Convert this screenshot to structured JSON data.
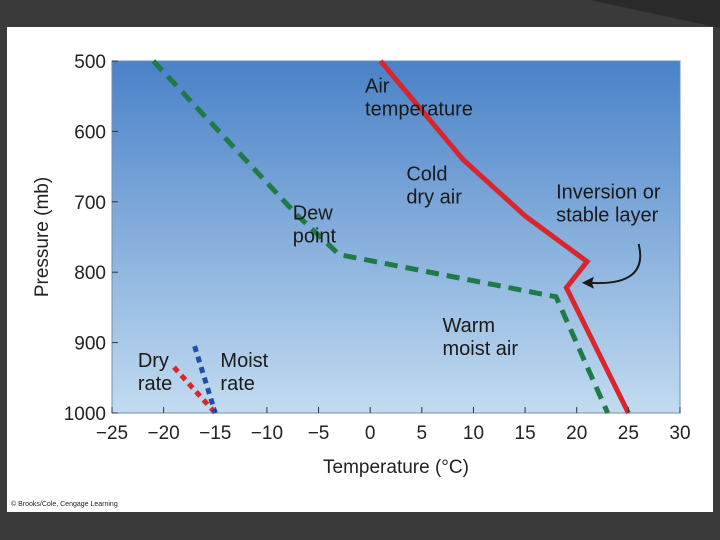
{
  "chart_data": {
    "type": "line",
    "xlabel": "Temperature (°C)",
    "ylabel": "Pressure (mb)",
    "xlim": [
      -25,
      30
    ],
    "ylim": [
      1000,
      500
    ],
    "x_ticks": [
      "−25",
      "−20",
      "−15",
      "−10",
      "−5",
      "0",
      "5",
      "10",
      "15",
      "20",
      "25",
      "30"
    ],
    "x_tick_values": [
      -25,
      -20,
      -15,
      -10,
      -5,
      0,
      5,
      10,
      15,
      20,
      25,
      30
    ],
    "y_ticks": [
      "500",
      "600",
      "700",
      "800",
      "900",
      "1000"
    ],
    "y_tick_values": [
      500,
      600,
      700,
      800,
      900,
      1000
    ],
    "grid": false,
    "series": [
      {
        "name": "Air temperature",
        "color": "#d8262d",
        "style": "solid",
        "points": [
          [
            1,
            500
          ],
          [
            9,
            640
          ],
          [
            15,
            720
          ],
          [
            21,
            785
          ],
          [
            19,
            822
          ],
          [
            25,
            1000
          ]
        ]
      },
      {
        "name": "Dew point",
        "color": "#1f7a46",
        "style": "dashed",
        "points": [
          [
            -21,
            500
          ],
          [
            -14,
            610
          ],
          [
            -7,
            720
          ],
          [
            -3,
            775
          ],
          [
            18,
            835
          ],
          [
            23,
            1000
          ]
        ]
      },
      {
        "name": "Dry rate",
        "color": "#d8262d",
        "style": "dotted",
        "points": [
          [
            -19,
            935
          ],
          [
            -15,
            1000
          ]
        ]
      },
      {
        "name": "Moist rate",
        "color": "#1f4fa8",
        "style": "dotted",
        "points": [
          [
            -17,
            905
          ],
          [
            -15,
            1000
          ]
        ]
      }
    ],
    "annotations": [
      {
        "id": "air-temp",
        "lines": [
          "Air",
          "temperature"
        ],
        "x": -0.5,
        "y": 545
      },
      {
        "id": "cold-dry",
        "lines": [
          "Cold",
          "dry air"
        ],
        "x": 3.5,
        "y": 670
      },
      {
        "id": "dew-point",
        "lines": [
          "Dew",
          "point"
        ],
        "x": -7.5,
        "y": 725
      },
      {
        "id": "inversion",
        "lines": [
          "Inversion or",
          "stable layer"
        ],
        "x": 18,
        "y": 695
      },
      {
        "id": "warm-moist",
        "lines": [
          "Warm",
          "moist air"
        ],
        "x": 7,
        "y": 885
      },
      {
        "id": "dry-rate",
        "lines": [
          "Dry",
          "rate"
        ],
        "x": -22.5,
        "y": 935
      },
      {
        "id": "moist-rate",
        "lines": [
          "Moist",
          "rate"
        ],
        "x": -14.5,
        "y": 935
      }
    ],
    "credit": "© Brooks/Cole, Cengage Learning"
  }
}
